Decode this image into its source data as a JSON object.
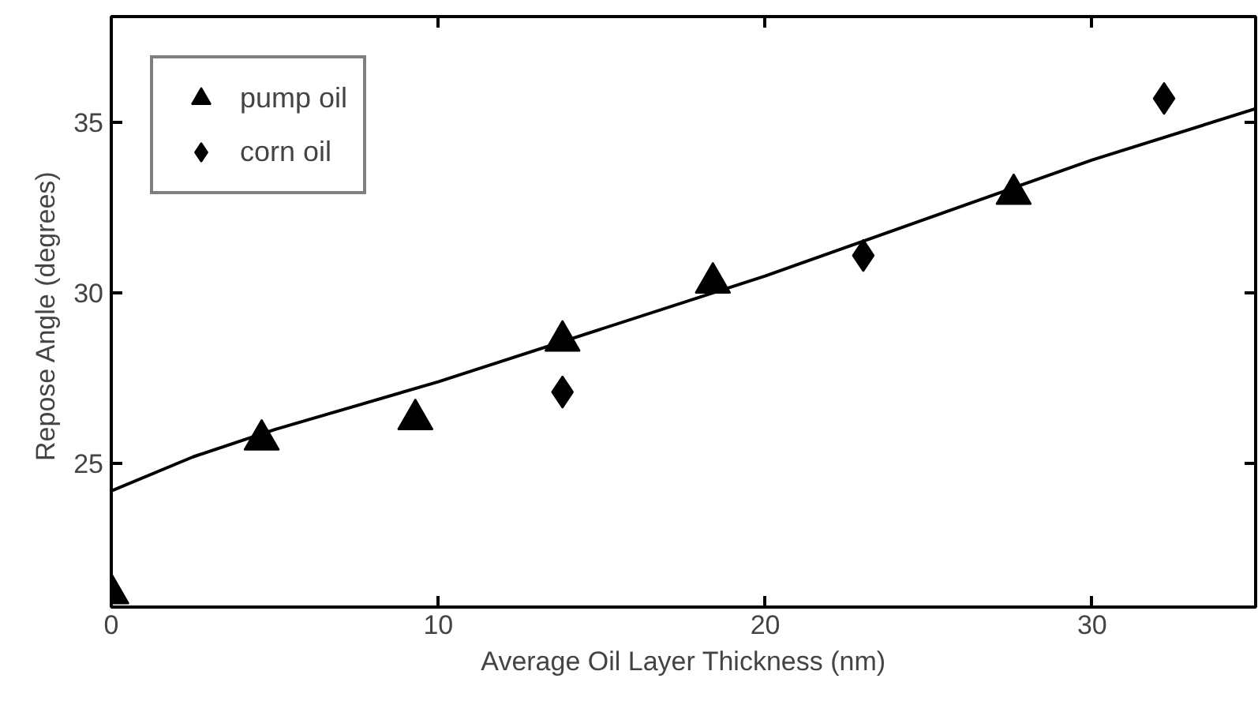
{
  "chart_data": {
    "type": "scatter",
    "xlabel": "Average Oil Layer Thickness (nm)",
    "ylabel": "Repose Angle  (degrees)",
    "xlim": [
      0,
      35
    ],
    "ylim": [
      20.8,
      38.1
    ],
    "xticks": [
      0,
      10,
      20,
      30
    ],
    "yticks": [
      25,
      30,
      35
    ],
    "grid": false,
    "legend": "top left",
    "series": [
      {
        "name": "pump oil",
        "color": "#000000",
        "marker": "triangle",
        "x": [
          0,
          4.6,
          9.3,
          13.8,
          18.4,
          27.6
        ],
        "values": [
          21.2,
          25.7,
          26.3,
          28.6,
          30.3,
          32.9
        ]
      },
      {
        "name": "corn oil",
        "color": "#000000",
        "marker": "diamond",
        "x": [
          13.8,
          23.0,
          32.2
        ],
        "values": [
          27.1,
          31.1,
          35.7
        ]
      },
      {
        "type": "line",
        "color": "#000000",
        "marker": "none",
        "x": [
          0,
          2.5,
          5,
          10,
          20,
          30,
          35
        ],
        "values": [
          24.2,
          25.2,
          26.0,
          27.4,
          30.5,
          33.9,
          35.4
        ]
      }
    ]
  }
}
